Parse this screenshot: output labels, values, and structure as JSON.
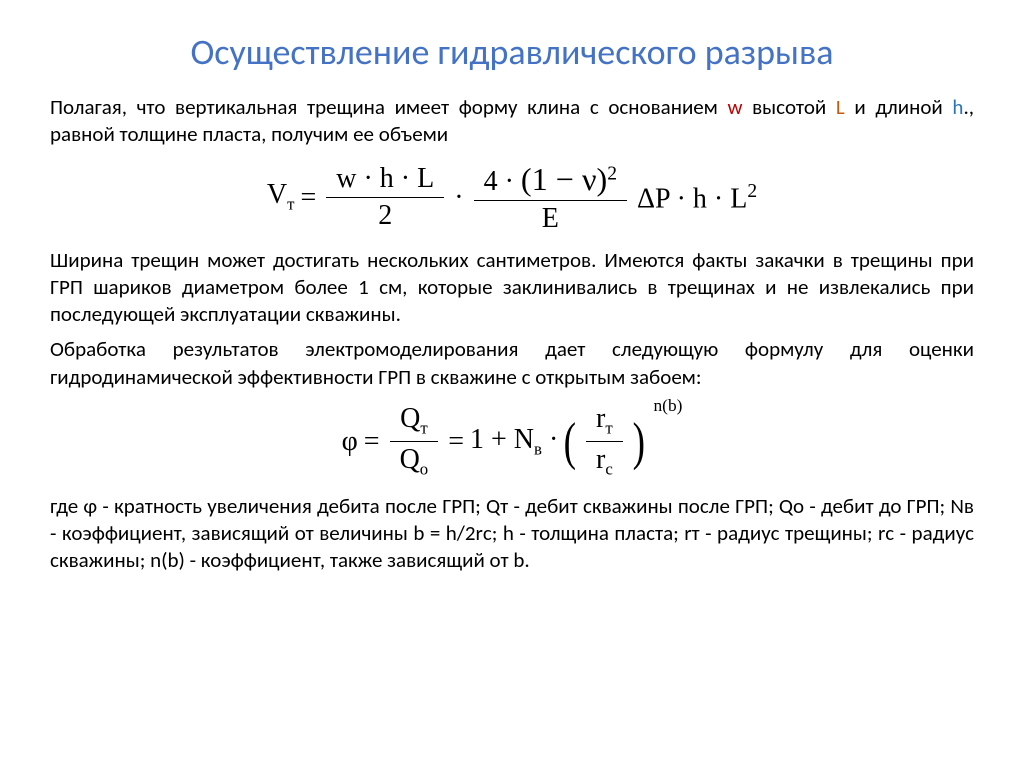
{
  "colors": {
    "title": "#4472c4",
    "body_text": "#000000",
    "background": "#ffffff",
    "hl_w": "#c00000",
    "hl_l": "#c55a11",
    "hl_h": "#2e75b6"
  },
  "typography": {
    "title_fontsize": 36,
    "body_fontsize": 21,
    "formula_fontsize": 28,
    "body_font": "Calibri, Arial, sans-serif",
    "formula_font": "Times New Roman, serif"
  },
  "title": "Осуществление гидравлического разрыва",
  "para1_a": "Полагая, что вертикальная трещина имеет форму клина с основанием ",
  "para1_w": "w",
  "para1_b": " высотой ",
  "para1_l": "L",
  "para1_c": " и длиной ",
  "para1_h": "h",
  "para1_d": "., равной толщине пласта, получим ее объеми",
  "formula1": {
    "lhs": "V",
    "lhs_sub": "т",
    "eq": "=",
    "frac1_num": "w · h · L",
    "frac1_den": "2",
    "dot1": "·",
    "frac2_num_a": "4 · ",
    "frac2_num_b": "(1 − ν)",
    "frac2_num_sup": "2",
    "frac2_den": "E",
    "tail": "ΔP · h · L",
    "tail_sup": "2"
  },
  "para2": "Ширина трещин может достигать нескольких сантиметров. Имеются факты закачки в трещины при ГРП шариков диаметром более 1 см, которые заклинивались в трещинах и не извлекались при последующей эксплуатации скважины.",
  "para3": " Обработка результатов электромоделирования дает следующую формулу для оценки гидродинамической эффективности ГРП в скважине с открытым забоем:",
  "formula2": {
    "phi": "φ",
    "eq1": "=",
    "fracA_num": "Q",
    "fracA_num_sub": "т",
    "fracA_den": "Q",
    "fracA_den_sub": "о",
    "eq2": "=",
    "one_plus": "1 + N",
    "Nsub": "в",
    "dot": " · ",
    "lparen": "(",
    "fracB_num": "r",
    "fracB_num_sub": "т",
    "fracB_den": "r",
    "fracB_den_sub": "c",
    "rparen": ")",
    "exp": "n(b)"
  },
  "para4": "где φ - кратность увеличения дебита после ГРП; Qт - дебит скважины после ГРП; Qо - дебит до ГРП; Nв - коэффициент, зависящий от величины b = h/2rс; h - толщина пласта; rт - радиус трещины; rс - радиус скважины; n(b) - коэффициент, также зависящий от b."
}
